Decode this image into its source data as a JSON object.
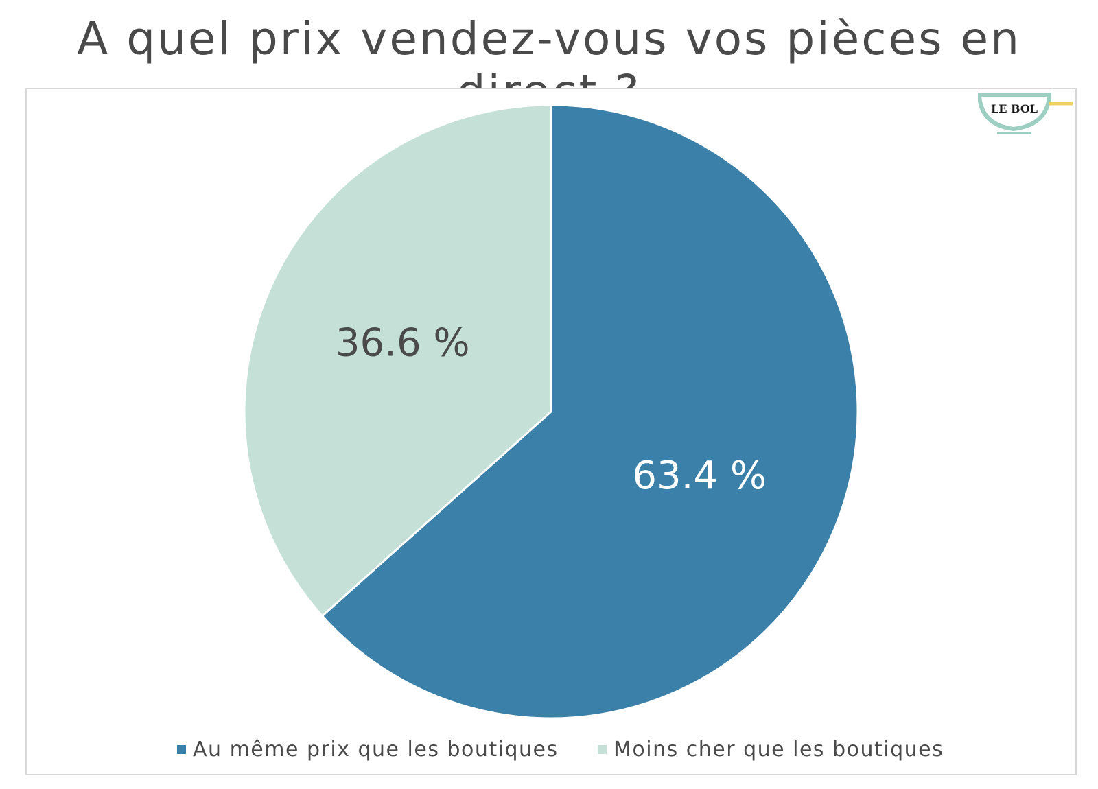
{
  "chart_data": {
    "type": "pie",
    "title": "A quel prix vendez-vous vos pièces en direct ?",
    "slices": [
      {
        "name": "Au même prix que les boutiques",
        "value": 63.4,
        "label": "63.4 %",
        "color": "#3a80a9"
      },
      {
        "name": "Moins cher que les boutiques",
        "value": 36.6,
        "label": "36.6 %",
        "color": "#c4e0d7"
      }
    ],
    "start": "12 o'clock",
    "direction": "clockwise",
    "legend_position": "bottom"
  },
  "logo": {
    "text": "LE BOL",
    "icon": "bowl-logo-icon"
  },
  "colors": {
    "title": "#4a4a4a",
    "frame": "#d9d9d9",
    "label_dark": "#4a4a4a",
    "label_light": "#ffffff",
    "logo_accent": "#f0d060"
  }
}
